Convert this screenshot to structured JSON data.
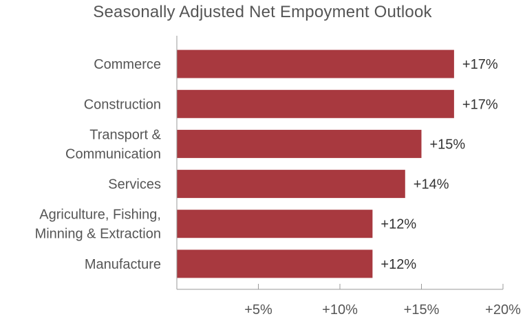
{
  "chart_data": {
    "type": "bar",
    "orientation": "horizontal",
    "title": "Seasonally Adjusted Net Empoyment Outlook",
    "categories": [
      [
        "Commerce"
      ],
      [
        "Construction"
      ],
      [
        "Transport &",
        "Communication"
      ],
      [
        "Services"
      ],
      [
        "Agriculture, Fishing,",
        "Minning & Extraction"
      ],
      [
        "Manufacture"
      ]
    ],
    "values": [
      17,
      17,
      15,
      14,
      12,
      12
    ],
    "value_labels": [
      "+17%",
      "+17%",
      "+15%",
      "+14%",
      "+12%",
      "+12%"
    ],
    "xlim": [
      0,
      20
    ],
    "x_ticks": [
      5,
      10,
      15,
      20
    ],
    "x_tick_labels": [
      "+5%",
      "+10%",
      "+15%",
      "+20%"
    ],
    "bar_color": "#a8393f",
    "grid": false
  }
}
